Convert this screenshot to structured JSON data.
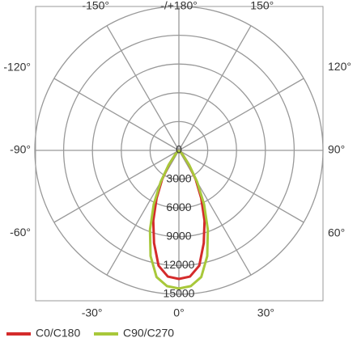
{
  "chart_data": {
    "type": "polar",
    "rlim": [
      0,
      15000
    ],
    "rticks": [
      0,
      3000,
      6000,
      9000,
      12000,
      15000
    ],
    "angle_ticks": [
      {
        "value": -150,
        "label": "-150°"
      },
      {
        "value": 180,
        "label": "-/+180°"
      },
      {
        "value": 150,
        "label": "150°"
      },
      {
        "value": -120,
        "label": "-120°"
      },
      {
        "value": 120,
        "label": "120°"
      },
      {
        "value": -90,
        "label": "-90°"
      },
      {
        "value": 90,
        "label": "90°"
      },
      {
        "value": -60,
        "label": "-60°"
      },
      {
        "value": 60,
        "label": "60°"
      },
      {
        "value": -30,
        "label": "-30°"
      },
      {
        "value": 0,
        "label": "0°"
      },
      {
        "value": 30,
        "label": "30°"
      }
    ],
    "x": [
      -50,
      -45,
      -40,
      -35,
      -30,
      -25,
      -20,
      -15,
      -10,
      -5,
      0,
      5,
      10,
      15,
      20,
      25,
      30,
      35,
      40,
      45,
      50
    ],
    "series": [
      {
        "name": "C0/C180",
        "color": "#d42b2b",
        "values": [
          0,
          200,
          700,
          1800,
          3500,
          5500,
          7800,
          10000,
          12200,
          13200,
          13400,
          13200,
          12200,
          10000,
          7800,
          5500,
          3500,
          1800,
          700,
          200,
          0
        ]
      },
      {
        "name": "C90/C270",
        "color": "#a8c83a",
        "values": [
          0,
          200,
          700,
          1900,
          3800,
          6200,
          8800,
          11400,
          13400,
          14200,
          14400,
          14200,
          13400,
          11400,
          8800,
          6200,
          3800,
          1900,
          700,
          200,
          0
        ]
      }
    ]
  }
}
